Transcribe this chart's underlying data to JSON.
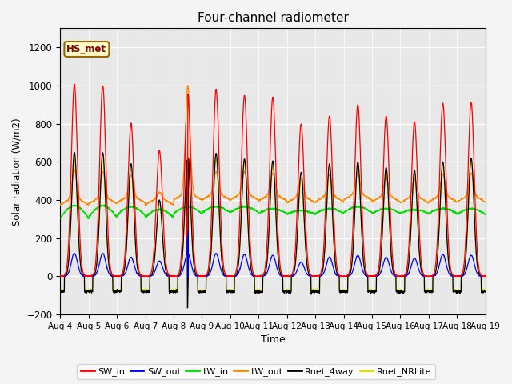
{
  "title": "Four-channel radiometer",
  "xlabel": "Time",
  "ylabel": "Solar radiation (W/m2)",
  "ylim": [
    -200,
    1300
  ],
  "yticks": [
    -200,
    0,
    200,
    400,
    600,
    800,
    1000,
    1200
  ],
  "x_tick_labels": [
    "Aug 4",
    "Aug 5",
    "Aug 6",
    "Aug 7",
    "Aug 8",
    "Aug 9",
    "Aug 10",
    "Aug 11",
    "Aug 12",
    "Aug 13",
    "Aug 14",
    "Aug 15",
    "Aug 16",
    "Aug 17",
    "Aug 18",
    "Aug 19"
  ],
  "station_label": "HS_met",
  "colors": {
    "SW_in": "#ff0000",
    "SW_out": "#0000ff",
    "LW_in": "#00dd00",
    "LW_out": "#ff8800",
    "Rnet_4way": "#000000",
    "Rnet_NRLite": "#dddd00"
  },
  "plot_bg": "#e8e8e8",
  "fig_bg": "#f4f4f4",
  "n_days": 15,
  "ppd": 144,
  "SW_in_peaks": [
    1005,
    1000,
    800,
    660,
    960,
    980,
    950,
    940,
    800,
    840,
    900,
    840,
    810,
    910,
    910
  ],
  "SW_out_peaks": [
    120,
    120,
    100,
    80,
    120,
    120,
    115,
    110,
    75,
    100,
    110,
    100,
    95,
    115,
    110
  ],
  "LW_in_base": [
    305,
    310,
    320,
    310,
    330,
    335,
    335,
    330,
    325,
    330,
    335,
    330,
    330,
    330,
    325
  ],
  "LW_in_bump": [
    65,
    60,
    45,
    40,
    35,
    30,
    30,
    25,
    20,
    25,
    30,
    25,
    20,
    25,
    30
  ],
  "LW_out_base": [
    375,
    380,
    385,
    375,
    400,
    400,
    400,
    395,
    385,
    390,
    400,
    390,
    385,
    390,
    390
  ],
  "LW_out_sharp_peaks": [
    530,
    520,
    500,
    410,
    970,
    520,
    520,
    510,
    480,
    500,
    510,
    490,
    480,
    505,
    510
  ],
  "Rnet_4way_peaks": [
    650,
    648,
    590,
    400,
    640,
    645,
    615,
    605,
    545,
    590,
    600,
    570,
    555,
    600,
    620
  ],
  "Rnet_NRLite_peaks": [
    625,
    615,
    560,
    385,
    625,
    615,
    595,
    580,
    510,
    570,
    588,
    545,
    535,
    582,
    600
  ],
  "night_Rnet": -80,
  "night_NRLite": -75,
  "aug8_spike_blue": 270,
  "aug8_spike_black": -165,
  "aug8_spike_day": 4
}
